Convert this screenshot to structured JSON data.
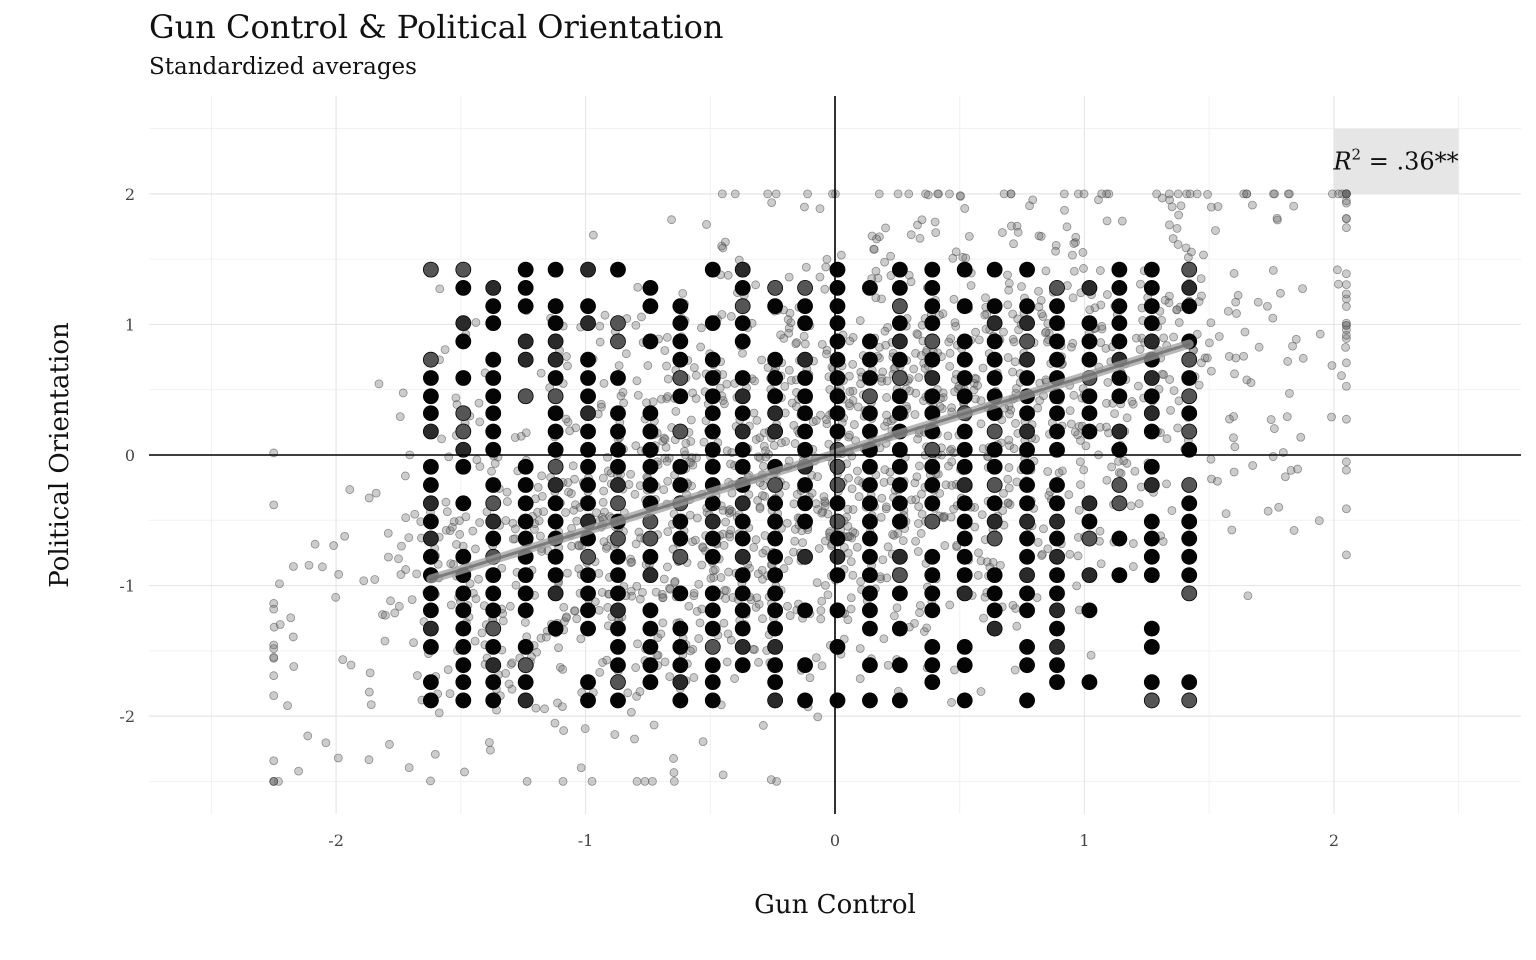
{
  "chart_data": {
    "type": "scatter",
    "title": "Gun Control & Political Orientation",
    "subtitle": "Standardized averages",
    "xlabel": "Gun Control",
    "ylabel": "Political Orientation",
    "xlim": [
      -2.75,
      2.75
    ],
    "ylim": [
      -2.75,
      2.75
    ],
    "x_ticks": [
      -2,
      -1,
      0,
      1,
      2
    ],
    "y_ticks": [
      -2,
      -1,
      0,
      1,
      2
    ],
    "x_tick_labels": [
      "-2",
      "-1",
      "0",
      "1",
      "2"
    ],
    "y_tick_labels": [
      "-2",
      "-1",
      "0",
      "1",
      "2"
    ],
    "grid": true,
    "reference_lines": {
      "x": 0,
      "y": 0
    },
    "annotation": {
      "text_main": "R",
      "text_sup": "2",
      "text_rest": " = .36**",
      "x_range": [
        2.0,
        2.5
      ],
      "y_range": [
        2.0,
        2.5
      ]
    },
    "trend_line": {
      "type": "linear",
      "x": [
        -1.62,
        1.42
      ],
      "y": [
        -0.95,
        0.85
      ]
    },
    "series": [
      {
        "label": "binned_averages",
        "x_values": [
          -1.62,
          -1.49,
          -1.37,
          -1.24,
          -1.12,
          -0.99,
          -0.87,
          -0.74,
          -0.62,
          -0.49,
          -0.37,
          -0.24,
          -0.12,
          0.01,
          0.14,
          0.26,
          0.39,
          0.52,
          0.64,
          0.77,
          0.89,
          1.02,
          1.14,
          1.27,
          1.42
        ],
        "y_values": [
          1.42,
          1.28,
          1.14,
          1.01,
          0.87,
          0.73,
          0.59,
          0.45,
          0.32,
          0.18,
          0.04,
          -0.09,
          -0.23,
          -0.37,
          -0.51,
          -0.64,
          -0.78,
          -0.92,
          -1.06,
          -1.19,
          -1.33,
          -1.47,
          -1.61,
          -1.74,
          -1.88
        ],
        "style": "large dark points, dense grid of bin averages"
      },
      {
        "label": "individual_responses",
        "x_range": [
          -2.25,
          2.05
        ],
        "y_range": [
          -2.5,
          2.0
        ],
        "style": "small semi-transparent grey points"
      }
    ]
  }
}
